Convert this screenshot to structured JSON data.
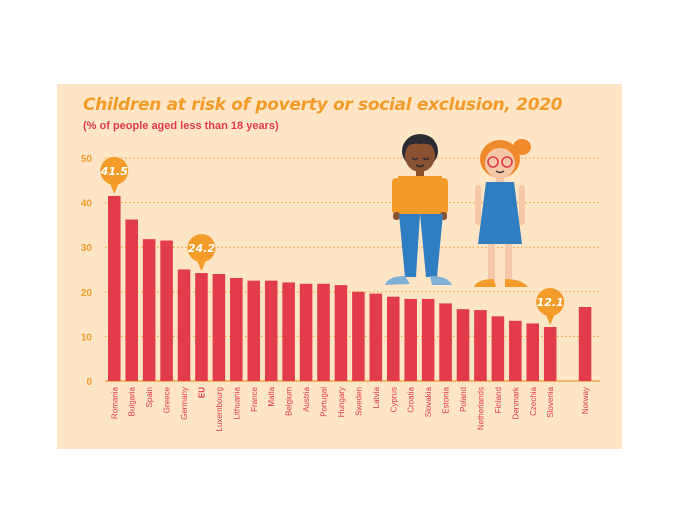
{
  "colors": {
    "panel": "#fde5c6",
    "bar": "#e23c4a",
    "title": "#f39c2a",
    "subtitle": "#e23c4a",
    "grid": "#f39c2a",
    "callout": "#f39c2a"
  },
  "chart_data": {
    "type": "bar",
    "title": "Children at risk of poverty or social exclusion, 2020",
    "subtitle": "(% of people aged less than 18 years)",
    "xlabel": "",
    "ylabel": "",
    "ylim": [
      0,
      50
    ],
    "yticks": [
      0,
      10,
      20,
      30,
      40,
      50
    ],
    "grid": true,
    "categories": [
      "Romania",
      "Bulgaria",
      "Spain",
      "Greece",
      "Germany",
      "EU",
      "Luxembourg",
      "Lithuania",
      "France",
      "Malta",
      "Belgium",
      "Austria",
      "Portugal",
      "Hungary",
      "Sweden",
      "Latvia",
      "Cyprus",
      "Croatia",
      "Slovakia",
      "Estonia",
      "Poland",
      "Netherlands",
      "Finland",
      "Denmark",
      "Czechia",
      "Slovenia",
      "Norway"
    ],
    "values": [
      41.5,
      36.2,
      31.8,
      31.5,
      25.0,
      24.2,
      24.0,
      23.1,
      22.5,
      22.5,
      22.1,
      21.8,
      21.8,
      21.5,
      20.0,
      19.6,
      18.9,
      18.4,
      18.4,
      17.4,
      16.1,
      15.9,
      14.5,
      13.5,
      12.9,
      12.1,
      16.6
    ],
    "bold_categories": [
      "EU"
    ],
    "gap_before": [
      "Norway"
    ],
    "annotations": [
      {
        "category": "Romania",
        "text": "41.5"
      },
      {
        "category": "EU",
        "text": "24.2"
      },
      {
        "category": "Slovenia",
        "text": "12.1"
      }
    ]
  }
}
